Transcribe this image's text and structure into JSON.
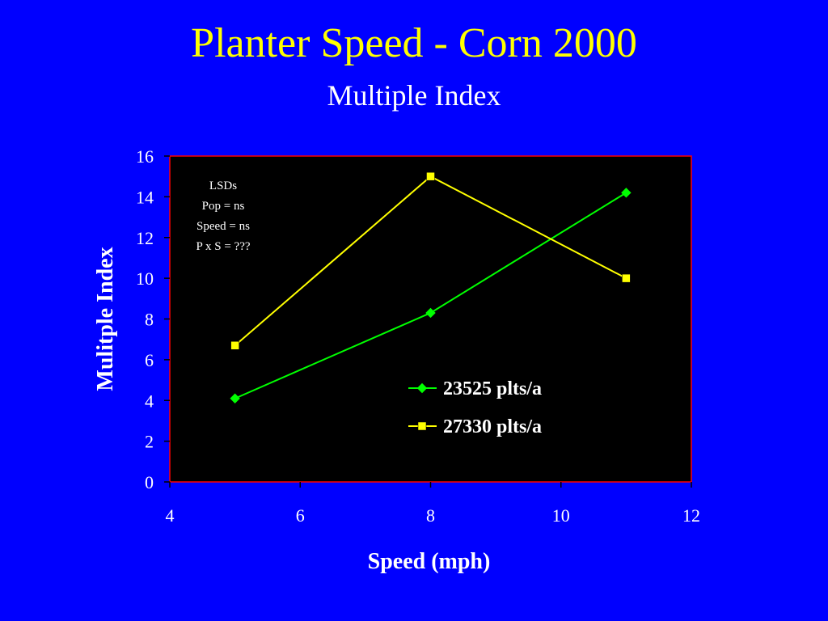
{
  "slide": {
    "title": "Planter Speed - Corn 2000",
    "subtitle": "Multiple Index"
  },
  "chart_data": {
    "type": "line",
    "xlabel": "Speed (mph)",
    "ylabel": "Mulitple Index",
    "xlim": [
      4,
      12
    ],
    "ylim": [
      0,
      16
    ],
    "xticks": [
      4,
      6,
      8,
      10,
      12
    ],
    "yticks": [
      0,
      2,
      4,
      6,
      8,
      10,
      12,
      14,
      16
    ],
    "grid": false,
    "legend_position": "bottom-right",
    "plot_background": "#000000",
    "plot_border_color": "#ff0000",
    "series": [
      {
        "name": "23525 plts/a",
        "color": "#00ff00",
        "marker": "diamond",
        "x": [
          5,
          8,
          11
        ],
        "y": [
          4.1,
          8.3,
          14.2
        ]
      },
      {
        "name": "27330 plts/a",
        "color": "#ffff00",
        "marker": "square",
        "x": [
          5,
          8,
          11
        ],
        "y": [
          6.7,
          15.0,
          10.0
        ]
      }
    ],
    "annotation": [
      "LSDs",
      "Pop = ns",
      "Speed = ns",
      "P x S = ???"
    ]
  }
}
